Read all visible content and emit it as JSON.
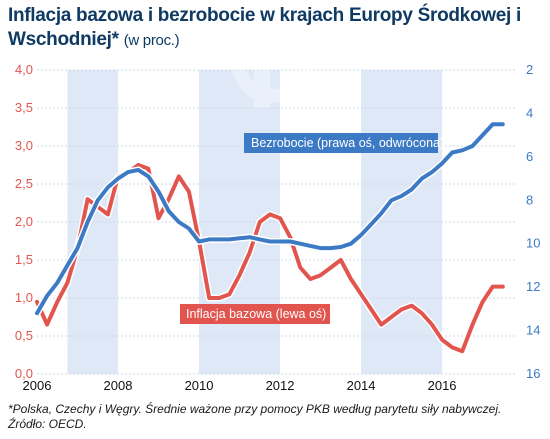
{
  "title": {
    "main": "Inflacja bazowa i bezrobocie w krajach Europy Środkowej i Wschodniej*",
    "unit": "(w proc.)"
  },
  "footnote": {
    "line1": "*Polska, Czechy i Węgry. Średnie ważone przy pomocy PKB według parytetu siły nabywczej.",
    "line2": "Źródło: OECD."
  },
  "colors": {
    "inflation": "#e2554f",
    "unemployment": "#3d7ac6",
    "band": "#dfe8f6",
    "grid": "#cfd8e6"
  },
  "chart_data": {
    "type": "line",
    "x_ticks": [
      "2006",
      "2008",
      "2010",
      "2012",
      "2014",
      "2016"
    ],
    "xlim": [
      2006,
      2017.8
    ],
    "left_axis": {
      "ylim": [
        0,
        4
      ],
      "ticks": [
        "0,0",
        "0,5",
        "1,0",
        "1,5",
        "2,0",
        "2,5",
        "3,0",
        "3,5",
        "4,0"
      ]
    },
    "right_axis": {
      "ylim": [
        2,
        16
      ],
      "inverted": true,
      "ticks": [
        "2",
        "4",
        "6",
        "8",
        "10",
        "12",
        "14",
        "16"
      ]
    },
    "series": [
      {
        "name": "Inflacja bazowa (lewa oś)",
        "axis": "left",
        "x": [
          2006.0,
          2006.25,
          2006.5,
          2006.75,
          2007.0,
          2007.25,
          2007.5,
          2007.75,
          2008.0,
          2008.25,
          2008.5,
          2008.75,
          2009.0,
          2009.25,
          2009.5,
          2009.75,
          2010.0,
          2010.25,
          2010.5,
          2010.75,
          2011.0,
          2011.25,
          2011.5,
          2011.75,
          2012.0,
          2012.25,
          2012.5,
          2012.75,
          2013.0,
          2013.25,
          2013.5,
          2013.75,
          2014.0,
          2014.25,
          2014.5,
          2014.75,
          2015.0,
          2015.25,
          2015.5,
          2015.75,
          2016.0,
          2016.25,
          2016.5,
          2016.75,
          2017.0,
          2017.25,
          2017.5
        ],
        "values": [
          0.95,
          0.65,
          0.95,
          1.2,
          1.65,
          2.3,
          2.2,
          2.1,
          2.6,
          2.65,
          2.75,
          2.7,
          2.05,
          2.3,
          2.6,
          2.4,
          1.75,
          1.0,
          1.0,
          1.05,
          1.3,
          1.6,
          2.0,
          2.1,
          2.05,
          1.8,
          1.4,
          1.25,
          1.3,
          1.4,
          1.5,
          1.25,
          1.05,
          0.85,
          0.65,
          0.75,
          0.85,
          0.9,
          0.8,
          0.65,
          0.45,
          0.35,
          0.3,
          0.65,
          0.95,
          1.15,
          1.15
        ]
      },
      {
        "name": "Bezrobocie (prawa oś, odwrócona)",
        "axis": "right",
        "x": [
          2006.0,
          2006.25,
          2006.5,
          2006.75,
          2007.0,
          2007.25,
          2007.5,
          2007.75,
          2008.0,
          2008.25,
          2008.5,
          2008.75,
          2009.0,
          2009.25,
          2009.5,
          2009.75,
          2010.0,
          2010.25,
          2010.5,
          2010.75,
          2011.0,
          2011.25,
          2011.5,
          2011.75,
          2012.0,
          2012.25,
          2012.5,
          2012.75,
          2013.0,
          2013.25,
          2013.5,
          2013.75,
          2014.0,
          2014.25,
          2014.5,
          2014.75,
          2015.0,
          2015.25,
          2015.5,
          2015.75,
          2016.0,
          2016.25,
          2016.5,
          2016.75,
          2017.0,
          2017.25,
          2017.5
        ],
        "values": [
          13.2,
          12.4,
          11.8,
          11.0,
          10.2,
          9.0,
          8.0,
          7.4,
          7.0,
          6.7,
          6.6,
          6.9,
          7.6,
          8.5,
          9.0,
          9.3,
          9.9,
          9.8,
          9.8,
          9.8,
          9.75,
          9.7,
          9.8,
          9.9,
          9.9,
          9.9,
          10.0,
          10.1,
          10.2,
          10.2,
          10.15,
          10.0,
          9.6,
          9.1,
          8.6,
          8.0,
          7.8,
          7.5,
          7.0,
          6.7,
          6.3,
          5.8,
          5.7,
          5.5,
          5.0,
          4.5,
          4.5
        ]
      }
    ],
    "shaded_periods": [
      [
        2006.75,
        2008.0
      ],
      [
        2010.0,
        2012.0
      ],
      [
        2014.0,
        2016.0
      ]
    ]
  }
}
